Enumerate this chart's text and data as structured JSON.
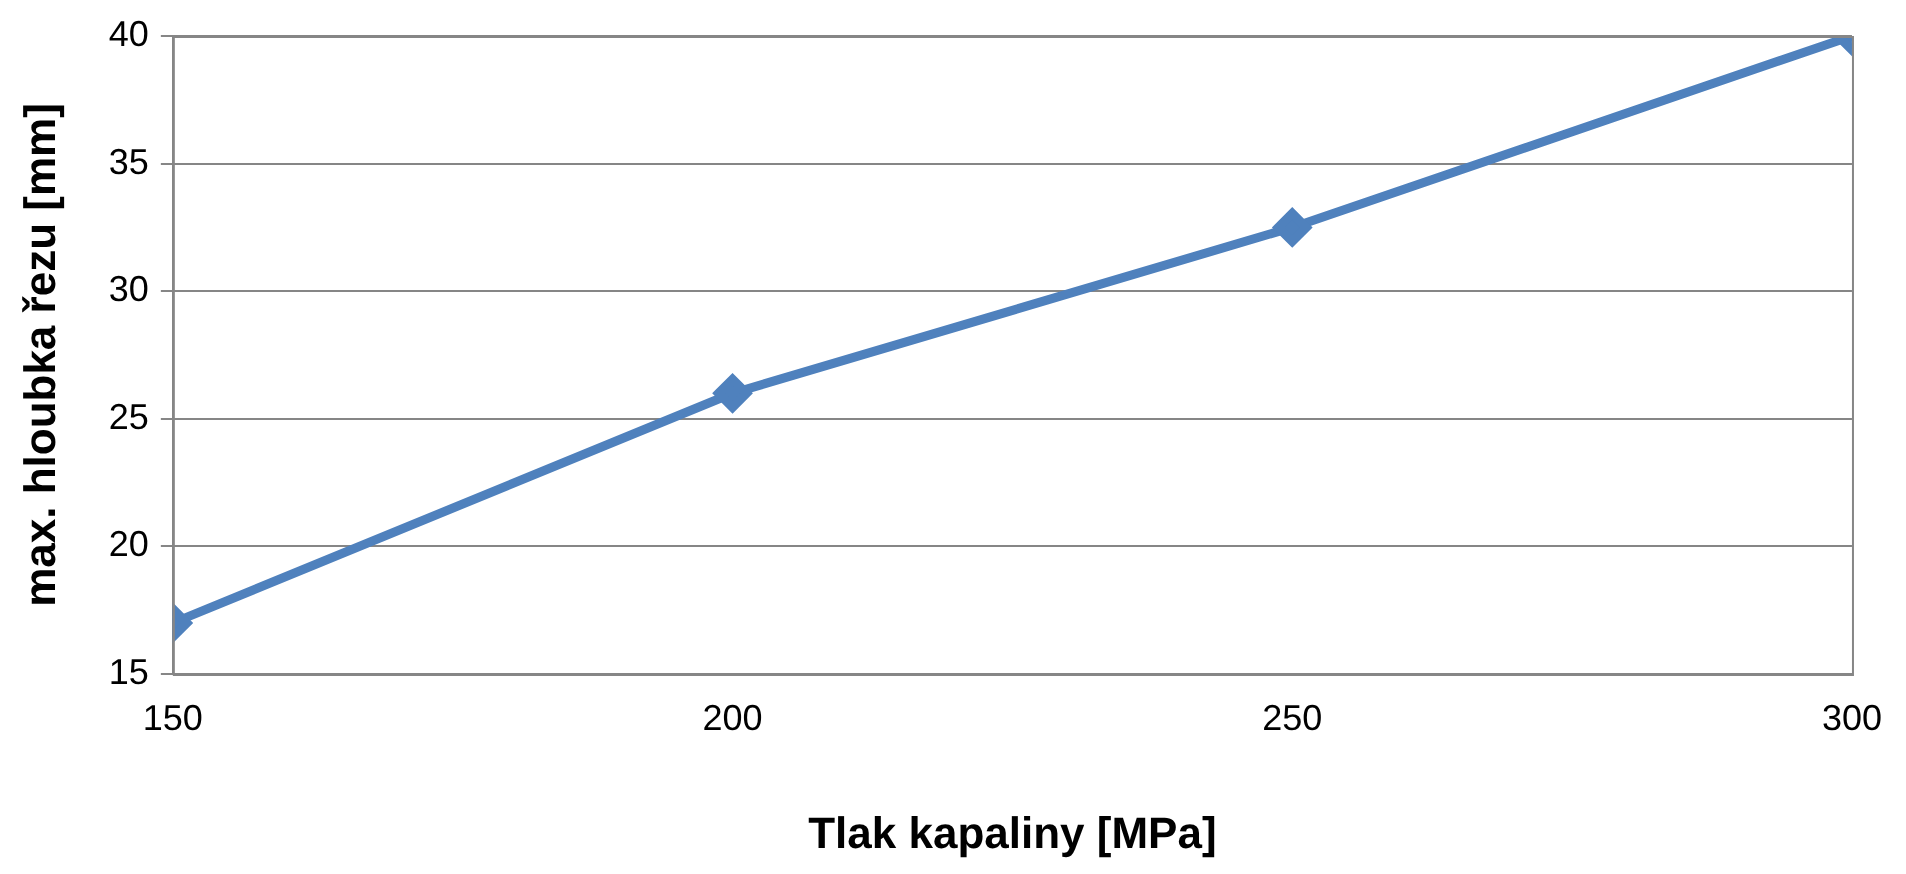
{
  "chart_data": {
    "type": "line",
    "xlabel": "Tlak kapaliny [MPa]",
    "ylabel": "max. hloubka řezu [mm]",
    "x": [
      150,
      200,
      250,
      300
    ],
    "series": [
      {
        "color": "#4f81bd",
        "values": [
          17,
          26,
          32.5,
          40
        ]
      }
    ],
    "xlim": [
      150,
      300
    ],
    "xticks": [
      150,
      200,
      250,
      300
    ],
    "ylim": [
      15,
      40
    ],
    "yticks": [
      15,
      20,
      25,
      30,
      35,
      40
    ],
    "grid": "y",
    "legend": false,
    "marker": "diamond",
    "line_style": "solid"
  }
}
